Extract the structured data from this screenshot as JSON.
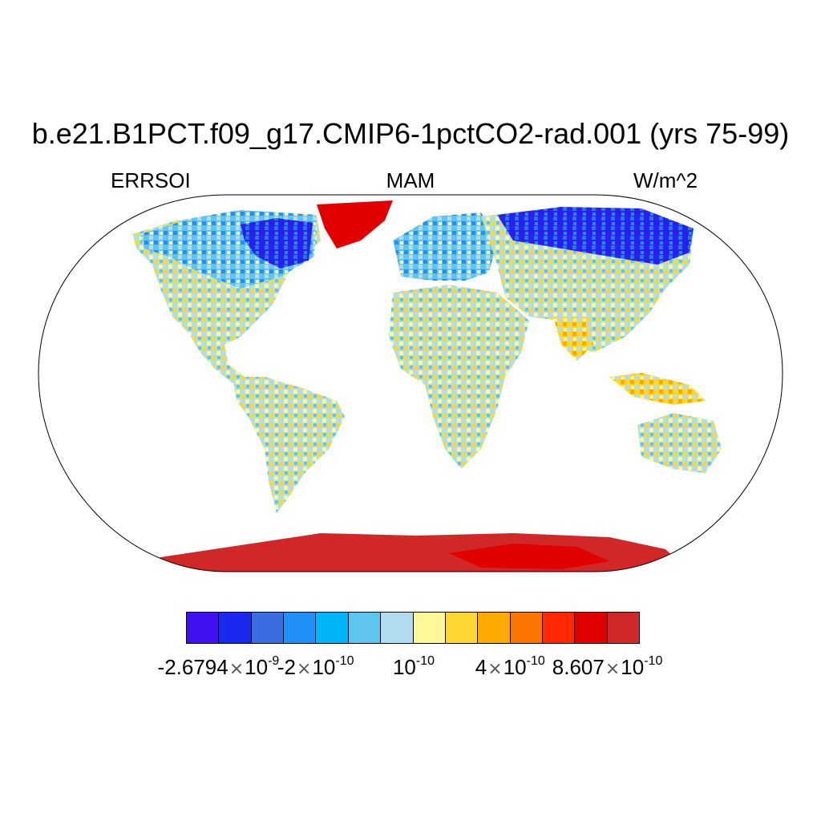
{
  "header": {
    "title": "b.e21.B1PCT.f09_g17.CMIP6-1pctCO2-rad.001 (yrs 75-99)",
    "left": "ERRSOI",
    "center": "MAM",
    "right": "W/m^2"
  },
  "colorbar": {
    "colors": [
      "#4010f0",
      "#1a28f0",
      "#3a6ee0",
      "#2090f8",
      "#00b4f8",
      "#60c4f0",
      "#b0dcf0",
      "#fff89a",
      "#fed830",
      "#fdaa00",
      "#fc7500",
      "#ff2800",
      "#e00000",
      "#d02828"
    ],
    "labels": [
      {
        "mantissa": "-2.6794",
        "sep": "×",
        "base": "10",
        "exp": "-9"
      },
      {
        "mantissa": "-2",
        "sep": "×",
        "base": "10",
        "exp": "-10"
      },
      {
        "mantissa": "",
        "sep": "",
        "base": "10",
        "exp": "-10"
      },
      {
        "mantissa": "4",
        "sep": "×",
        "base": "10",
        "exp": "-10"
      },
      {
        "mantissa": "8.607",
        "sep": "×",
        "base": "10",
        "exp": "-10"
      }
    ]
  }
}
